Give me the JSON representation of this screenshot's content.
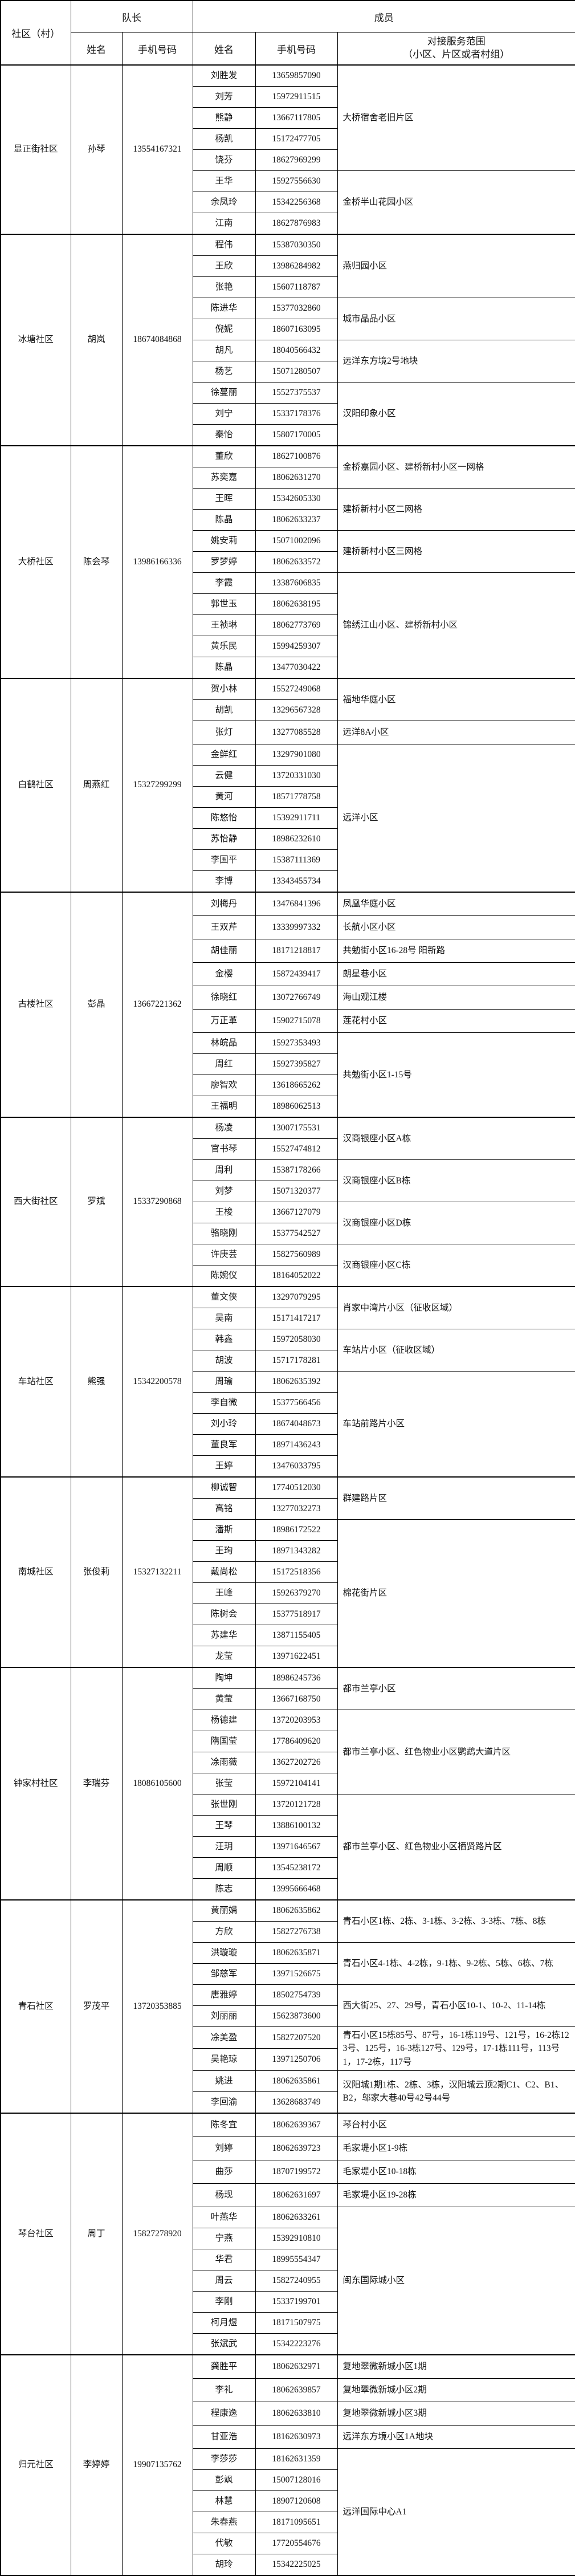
{
  "table": {
    "headers": {
      "community": "社区（村）",
      "leader_group": "队长",
      "member_group": "成员",
      "leader_name": "姓名",
      "leader_phone": "手机号码",
      "member_name": "姓名",
      "member_phone": "手机号码",
      "scope_line1": "对接服务范围",
      "scope_line2": "（小区、片区或者村组）"
    }
  },
  "communities": [
    {
      "name": "显正街社区",
      "leader": {
        "name": "孙琴",
        "phone": "13554167321"
      },
      "groups": [
        {
          "scope": "大桥宿舍老旧片区",
          "members": [
            {
              "name": "刘胜发",
              "phone": "13659857090"
            },
            {
              "name": "刘芳",
              "phone": "15972911515"
            },
            {
              "name": "熊静",
              "phone": "13667117805"
            },
            {
              "name": "杨凯",
              "phone": "15172477705"
            },
            {
              "name": "饶芬",
              "phone": "18627969299"
            }
          ]
        },
        {
          "scope": "金桥半山花园小区",
          "members": [
            {
              "name": "王华",
              "phone": "15927556630"
            },
            {
              "name": "余凤玲",
              "phone": "15342256368"
            },
            {
              "name": "江南",
              "phone": "18627876983"
            }
          ]
        }
      ]
    },
    {
      "name": "冰塘社区",
      "leader": {
        "name": "胡岚",
        "phone": "18674084868"
      },
      "groups": [
        {
          "scope": "燕归园小区",
          "members": [
            {
              "name": "程伟",
              "phone": "15387030350"
            },
            {
              "name": "王欣",
              "phone": "13986284982"
            },
            {
              "name": "张艳",
              "phone": "15607118787"
            }
          ]
        },
        {
          "scope": "城市晶品小区",
          "members": [
            {
              "name": "陈进华",
              "phone": "15377032860"
            },
            {
              "name": "倪妮",
              "phone": "18607163095"
            }
          ]
        },
        {
          "scope": "远洋东方境2号地块",
          "members": [
            {
              "name": "胡凡",
              "phone": "18040566432"
            },
            {
              "name": "杨艺",
              "phone": "15071280507"
            }
          ]
        },
        {
          "scope": "汉阳印象小区",
          "members": [
            {
              "name": "徐蔓丽",
              "phone": "15527375537"
            },
            {
              "name": "刘宁",
              "phone": "15337178376"
            },
            {
              "name": "秦怡",
              "phone": "15807170005"
            }
          ]
        }
      ]
    },
    {
      "name": "大桥社区",
      "leader": {
        "name": "陈会琴",
        "phone": "13986166336"
      },
      "groups": [
        {
          "scope": "金桥嘉园小区、建桥新村小区一网格",
          "members": [
            {
              "name": "董欣",
              "phone": "18627100876"
            },
            {
              "name": "苏奕嘉",
              "phone": "18062631270"
            }
          ]
        },
        {
          "scope": "建桥新村小区二网格",
          "members": [
            {
              "name": "王晖",
              "phone": "15342605330"
            },
            {
              "name": "陈晶",
              "phone": "18062633237"
            }
          ]
        },
        {
          "scope": "建桥新村小区三网格",
          "members": [
            {
              "name": "姚安莉",
              "phone": "15071002096"
            },
            {
              "name": "罗梦婷",
              "phone": "18062633572"
            }
          ]
        },
        {
          "scope": "锦绣江山小区、建桥新村小区",
          "members": [
            {
              "name": "李霞",
              "phone": "13387606835"
            },
            {
              "name": "郭世玉",
              "phone": "18062638195"
            },
            {
              "name": "王祯琳",
              "phone": "18062773769"
            },
            {
              "name": "黄乐民",
              "phone": "15994259307"
            },
            {
              "name": "陈晶",
              "phone": "13477030422"
            }
          ]
        }
      ]
    },
    {
      "name": "白鹤社区",
      "leader": {
        "name": "周燕红",
        "phone": "15327299299"
      },
      "groups": [
        {
          "scope": "福地华庭小区",
          "members": [
            {
              "name": "贺小林",
              "phone": "15527249068"
            },
            {
              "name": "胡凯",
              "phone": "13296567328"
            }
          ]
        },
        {
          "scope": "远洋8A小区",
          "members": [
            {
              "name": "张灯",
              "phone": "13277085528"
            }
          ]
        },
        {
          "scope": "远洋小区",
          "members": [
            {
              "name": "金鲜红",
              "phone": "13297901080"
            },
            {
              "name": "云健",
              "phone": "13720331030"
            },
            {
              "name": "黄河",
              "phone": "18571778758"
            },
            {
              "name": "陈悠怡",
              "phone": "15392911711"
            },
            {
              "name": "苏怡静",
              "phone": "18986232610"
            },
            {
              "name": "李国平",
              "phone": "15387111369"
            },
            {
              "name": "李博",
              "phone": "13343455734"
            }
          ]
        }
      ]
    },
    {
      "name": "古楼社区",
      "leader": {
        "name": "彭晶",
        "phone": "13667221362"
      },
      "groups": [
        {
          "scope": "凤凰华庭小区",
          "members": [
            {
              "name": "刘梅丹",
              "phone": "13476841396"
            }
          ]
        },
        {
          "scope": "长航小区小区",
          "members": [
            {
              "name": "王双芹",
              "phone": "13339997332"
            }
          ]
        },
        {
          "scope": "共勉街小区16-28号 阳新路",
          "members": [
            {
              "name": "胡佳丽",
              "phone": "18171218817"
            }
          ]
        },
        {
          "scope": "朗星巷小区",
          "members": [
            {
              "name": "金樱",
              "phone": "15872439417"
            }
          ]
        },
        {
          "scope": "海山观江楼",
          "members": [
            {
              "name": "徐晓红",
              "phone": "13072766749"
            }
          ]
        },
        {
          "scope": "莲花村小区",
          "members": [
            {
              "name": "万正革",
              "phone": "15902715078"
            }
          ]
        },
        {
          "scope": "共勉街小区1-15号",
          "members": [
            {
              "name": "林皖晶",
              "phone": "15927353493"
            },
            {
              "name": "周红",
              "phone": "15927395827"
            },
            {
              "name": "廖智欢",
              "phone": "13618665262"
            },
            {
              "name": "王福明",
              "phone": "18986062513"
            }
          ]
        }
      ]
    },
    {
      "name": "西大街社区",
      "leader": {
        "name": "罗斌",
        "phone": "15337290868"
      },
      "groups": [
        {
          "scope": "汉商银座小区A栋",
          "members": [
            {
              "name": "杨凌",
              "phone": "13007175531"
            },
            {
              "name": "官书琴",
              "phone": "15527474812"
            }
          ]
        },
        {
          "scope": "汉商银座小区B栋",
          "members": [
            {
              "name": "周利",
              "phone": "15387178266"
            },
            {
              "name": "刘梦",
              "phone": "15071320377"
            }
          ]
        },
        {
          "scope": "汉商银座小区D栋",
          "members": [
            {
              "name": "王梭",
              "phone": "13667127079"
            },
            {
              "name": "骆晓刚",
              "phone": "15377542527"
            }
          ]
        },
        {
          "scope": "汉商银座小区C栋",
          "members": [
            {
              "name": "许庚芸",
              "phone": "15827560989"
            },
            {
              "name": "陈婉仪",
              "phone": "18164052022"
            }
          ]
        }
      ]
    },
    {
      "name": "车站社区",
      "leader": {
        "name": "熊强",
        "phone": "15342200578"
      },
      "groups": [
        {
          "scope": "肖家中湾片小区（征收区域）",
          "members": [
            {
              "name": "董文侠",
              "phone": "13297079295"
            },
            {
              "name": "吴南",
              "phone": "15171417217"
            }
          ]
        },
        {
          "scope": "车站片小区（征收区域）",
          "members": [
            {
              "name": "韩鑫",
              "phone": "15972058030"
            },
            {
              "name": "胡波",
              "phone": "15717178281"
            }
          ]
        },
        {
          "scope": "车站前路片小区",
          "members": [
            {
              "name": "周瑜",
              "phone": "18062635392"
            },
            {
              "name": "李自微",
              "phone": "15377566456"
            },
            {
              "name": "刘小玲",
              "phone": "18674048673"
            },
            {
              "name": "董良军",
              "phone": "18971436243"
            },
            {
              "name": "王婷",
              "phone": "13476033795"
            }
          ]
        }
      ]
    },
    {
      "name": "南城社区",
      "leader": {
        "name": "张俊莉",
        "phone": "15327132211"
      },
      "groups": [
        {
          "scope": "群建路片区",
          "members": [
            {
              "name": "柳诚智",
              "phone": "17740512030"
            },
            {
              "name": "高铭",
              "phone": "13277032273"
            }
          ]
        },
        {
          "scope": "棉花街片区",
          "members": [
            {
              "name": "潘斯",
              "phone": "18986172522"
            },
            {
              "name": "王珣",
              "phone": "18971343282"
            },
            {
              "name": "戴尚松",
              "phone": "15172518356"
            },
            {
              "name": "王峰",
              "phone": "15926379270"
            },
            {
              "name": "陈树会",
              "phone": "15377518917"
            },
            {
              "name": "苏建华",
              "phone": "13871155405"
            },
            {
              "name": "龙莹",
              "phone": "13971622451"
            }
          ]
        }
      ]
    },
    {
      "name": "钟家村社区",
      "leader": {
        "name": "李瑞芬",
        "phone": "18086105600"
      },
      "groups": [
        {
          "scope": "都市兰亭小区",
          "members": [
            {
              "name": "陶坤",
              "phone": "18986245736"
            },
            {
              "name": "黄莹",
              "phone": "13667168750"
            }
          ]
        },
        {
          "scope": "都市兰亭小区、红色物业小区鹦鹉大道片区",
          "members": [
            {
              "name": "杨德建",
              "phone": "13720203953"
            },
            {
              "name": "隋国莹",
              "phone": "17786409620"
            },
            {
              "name": "凃雨薇",
              "phone": "13627202726"
            },
            {
              "name": "张莹",
              "phone": "15972104141"
            }
          ]
        },
        {
          "scope": "都市兰亭小区、红色物业小区栖贤路片区",
          "members": [
            {
              "name": "张世刚",
              "phone": "13720121728"
            },
            {
              "name": "王琴",
              "phone": "13886100132"
            },
            {
              "name": "汪玥",
              "phone": "13971646567"
            },
            {
              "name": "周顺",
              "phone": "13545238172"
            },
            {
              "name": "陈志",
              "phone": "13995666468"
            }
          ]
        }
      ]
    },
    {
      "name": "青石社区",
      "leader": {
        "name": "罗茂平",
        "phone": "13720353885"
      },
      "groups": [
        {
          "scope": "青石小区1栋、2栋、3-1栋、3-2栋、3-3栋、7栋、8栋",
          "members": [
            {
              "name": "黄丽娟",
              "phone": "18062635862"
            },
            {
              "name": "方欣",
              "phone": "15827276738"
            }
          ]
        },
        {
          "scope": "青石小区4-1栋、4-2栋，9-1栋、9-2栋、5栋、6栋、7栋",
          "members": [
            {
              "name": "洪璇璇",
              "phone": "18062635871"
            },
            {
              "name": "邹慈军",
              "phone": "13971526675"
            }
          ]
        },
        {
          "scope": "西大街25、27、29号，青石小区10-1、10-2、11-14栋",
          "members": [
            {
              "name": "唐雅婷",
              "phone": "18502754739"
            },
            {
              "name": "刘丽丽",
              "phone": "15623873600"
            }
          ]
        },
        {
          "scope": "青石小区15栋85号、87号，16-1栋119号、121号，16-2栋123号、125号，16-3栋127号、129号，17-1栋111号，113号1，17-2栋，117号",
          "members": [
            {
              "name": "凃美盈",
              "phone": "15827207520"
            },
            {
              "name": "吴艳琼",
              "phone": "13971250706"
            }
          ]
        },
        {
          "scope": "汉阳城1期1栋、2栋、3栋，汉阳城云顶2期C1、C2、B1、B2，邬家大巷40号42号44号",
          "members": [
            {
              "name": "姚进",
              "phone": "18062635861"
            },
            {
              "name": "李回渝",
              "phone": "13628683749"
            }
          ]
        }
      ]
    },
    {
      "name": "琴台社区",
      "leader": {
        "name": "周丁",
        "phone": "15827278920"
      },
      "groups": [
        {
          "scope": "琴台村小区",
          "members": [
            {
              "name": "陈冬宜",
              "phone": "18062639367"
            }
          ]
        },
        {
          "scope": "毛家堤小区1-9栋",
          "members": [
            {
              "name": "刘婷",
              "phone": "18062639723"
            }
          ]
        },
        {
          "scope": "毛家堤小区10-18栋",
          "members": [
            {
              "name": "曲莎",
              "phone": "18707199572"
            }
          ]
        },
        {
          "scope": "毛家堤小区19-28栋",
          "members": [
            {
              "name": "杨现",
              "phone": "18062631697"
            }
          ]
        },
        {
          "scope": "闽东国际城小区",
          "members": [
            {
              "name": "叶燕华",
              "phone": "18062633261"
            },
            {
              "name": "宁燕",
              "phone": "15392910810"
            },
            {
              "name": "华君",
              "phone": "18995554347"
            },
            {
              "name": "周云",
              "phone": "15827240955"
            },
            {
              "name": "李刚",
              "phone": "15337199701"
            },
            {
              "name": "柯月煜",
              "phone": "18171507975"
            },
            {
              "name": "张斌武",
              "phone": "15342223276"
            }
          ]
        }
      ]
    },
    {
      "name": "归元社区",
      "leader": {
        "name": "李婷婷",
        "phone": "19907135762"
      },
      "groups": [
        {
          "scope": "复地翠微新城小区1期",
          "members": [
            {
              "name": "龚胜平",
              "phone": "18062632971"
            }
          ]
        },
        {
          "scope": "复地翠微新城小区2期",
          "members": [
            {
              "name": "李礼",
              "phone": "18062639857"
            }
          ]
        },
        {
          "scope": "复地翠微新城小区3期",
          "members": [
            {
              "name": "程康逸",
              "phone": "18062633810"
            }
          ]
        },
        {
          "scope": "远洋东方境小区1A地块",
          "members": [
            {
              "name": "甘亚浩",
              "phone": "18162630973"
            }
          ]
        },
        {
          "scope": "远洋国际中心A1",
          "members": [
            {
              "name": "李莎莎",
              "phone": "18162631359"
            },
            {
              "name": "彭飒",
              "phone": "15007128016"
            },
            {
              "name": "林慧",
              "phone": "18907120608"
            },
            {
              "name": "朱春燕",
              "phone": "18171095651"
            },
            {
              "name": "代敏",
              "phone": "17720554676"
            },
            {
              "name": "胡玲",
              "phone": "15342225025"
            }
          ]
        }
      ]
    }
  ]
}
